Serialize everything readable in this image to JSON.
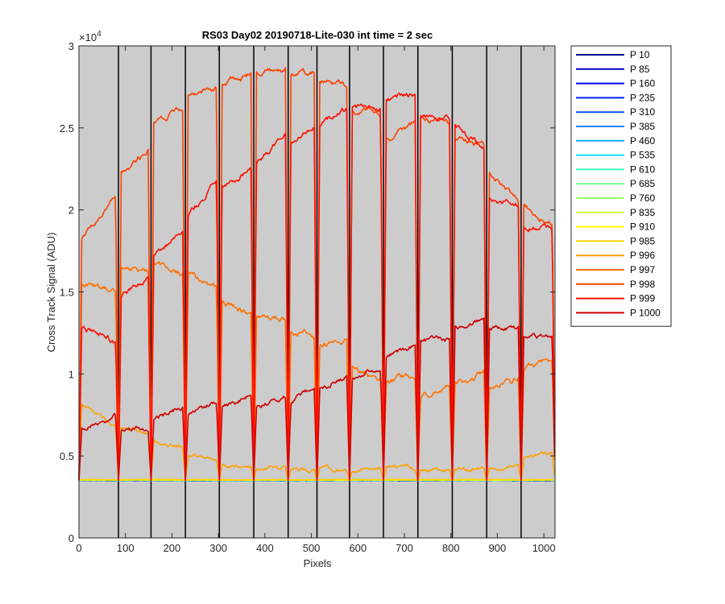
{
  "chart_data": {
    "type": "line",
    "title": "RS03 Day02 20190718-Lite-030 int time = 2 sec",
    "xlabel": "Pixels",
    "ylabel": "Cross Track Signal (ADU)",
    "y_exponent_label": "×10",
    "y_exponent_power": "4",
    "xlim": [
      0,
      1024
    ],
    "ylim": [
      0,
      30000
    ],
    "xticks": [
      0,
      100,
      200,
      300,
      400,
      500,
      600,
      700,
      800,
      900,
      1000
    ],
    "xtick_labels": [
      "0",
      "100",
      "200",
      "300",
      "400",
      "500",
      "600",
      "700",
      "800",
      "900",
      "1000"
    ],
    "yticks": [
      0,
      5000,
      10000,
      15000,
      20000,
      25000,
      30000
    ],
    "ytick_labels": [
      "0",
      "0.5",
      "1",
      "1.5",
      "2",
      "2.5",
      "3"
    ],
    "background_color": "#cccccc",
    "grid": false,
    "legend_position": "outside-right",
    "divider_lines_x": [
      85,
      155,
      229,
      302,
      376,
      450,
      512,
      582,
      655,
      729,
      803,
      877,
      951
    ],
    "block_starts": [
      0,
      85,
      155,
      229,
      302,
      376,
      450,
      512,
      582,
      655,
      729,
      803,
      877,
      951
    ],
    "block_ends": [
      85,
      155,
      229,
      302,
      376,
      450,
      512,
      582,
      655,
      729,
      803,
      877,
      951,
      1024
    ],
    "baseline": 3520,
    "series": [
      {
        "name": "P 10",
        "color": "#00008f",
        "levels": [
          3500,
          3500,
          3500,
          3500,
          3500,
          3500,
          3500,
          3500,
          3500,
          3500,
          3500,
          3500,
          3500,
          3500
        ],
        "drift": [
          0,
          0,
          0,
          0,
          0,
          0,
          0,
          0,
          0,
          0,
          0,
          0,
          0,
          0
        ],
        "noise": 10
      },
      {
        "name": "P 85",
        "color": "#0000bf",
        "levels": [
          3505,
          3505,
          3505,
          3505,
          3505,
          3505,
          3505,
          3505,
          3505,
          3505,
          3505,
          3505,
          3505,
          3505
        ],
        "drift": [
          0,
          0,
          0,
          0,
          0,
          0,
          0,
          0,
          0,
          0,
          0,
          0,
          0,
          0
        ],
        "noise": 10
      },
      {
        "name": "P 160",
        "color": "#0000ef",
        "levels": [
          3510,
          3510,
          3510,
          3510,
          3510,
          3510,
          3510,
          3510,
          3510,
          3510,
          3510,
          3510,
          3510,
          3510
        ],
        "drift": [
          0,
          0,
          0,
          0,
          0,
          0,
          0,
          0,
          0,
          0,
          0,
          0,
          0,
          0
        ],
        "noise": 10
      },
      {
        "name": "P 235",
        "color": "#0020ff",
        "levels": [
          3512,
          3512,
          3512,
          3512,
          3512,
          3512,
          3512,
          3512,
          3512,
          3512,
          3512,
          3512,
          3512,
          3512
        ],
        "drift": [
          0,
          0,
          0,
          0,
          0,
          0,
          0,
          0,
          0,
          0,
          0,
          0,
          0,
          0
        ],
        "noise": 10
      },
      {
        "name": "P 310",
        "color": "#0050ff",
        "levels": [
          3515,
          3515,
          3515,
          3515,
          3515,
          3515,
          3515,
          3515,
          3515,
          3515,
          3515,
          3515,
          3515,
          3515
        ],
        "drift": [
          0,
          0,
          0,
          0,
          0,
          0,
          0,
          0,
          0,
          0,
          0,
          0,
          0,
          0
        ],
        "noise": 10
      },
      {
        "name": "P 385",
        "color": "#0080ff",
        "levels": [
          3518,
          3518,
          3518,
          3518,
          3518,
          3518,
          3518,
          3518,
          3518,
          3518,
          3518,
          3518,
          3518,
          3518
        ],
        "drift": [
          0,
          0,
          0,
          0,
          0,
          0,
          0,
          0,
          0,
          0,
          0,
          0,
          0,
          0
        ],
        "noise": 10
      },
      {
        "name": "P 460",
        "color": "#00b0ff",
        "levels": [
          3520,
          3520,
          3520,
          3520,
          3520,
          3520,
          3520,
          3520,
          3520,
          3520,
          3520,
          3520,
          3520,
          3520
        ],
        "drift": [
          0,
          0,
          0,
          0,
          0,
          0,
          0,
          0,
          0,
          0,
          0,
          0,
          0,
          0
        ],
        "noise": 10
      },
      {
        "name": "P 535",
        "color": "#10e0ef",
        "levels": [
          3522,
          3522,
          3522,
          3522,
          3522,
          3522,
          3522,
          3522,
          3522,
          3522,
          3522,
          3522,
          3522,
          3522
        ],
        "drift": [
          0,
          0,
          0,
          0,
          0,
          0,
          0,
          0,
          0,
          0,
          0,
          0,
          0,
          0
        ],
        "noise": 10
      },
      {
        "name": "P 610",
        "color": "#40ffbf",
        "levels": [
          3525,
          3525,
          3525,
          3525,
          3525,
          3525,
          3525,
          3525,
          3525,
          3525,
          3525,
          3525,
          3525,
          3525
        ],
        "drift": [
          0,
          0,
          0,
          0,
          0,
          0,
          0,
          0,
          0,
          0,
          0,
          0,
          0,
          0
        ],
        "noise": 10
      },
      {
        "name": "P 685",
        "color": "#70ff8f",
        "levels": [
          3527,
          3527,
          3527,
          3527,
          3527,
          3527,
          3527,
          3527,
          3527,
          3527,
          3527,
          3527,
          3527,
          3527
        ],
        "drift": [
          0,
          0,
          0,
          0,
          0,
          0,
          0,
          0,
          0,
          0,
          0,
          0,
          0,
          0
        ],
        "noise": 10
      },
      {
        "name": "P 760",
        "color": "#a0ff60",
        "levels": [
          3530,
          3530,
          3530,
          3530,
          3530,
          3530,
          3530,
          3530,
          3530,
          3530,
          3530,
          3530,
          3530,
          3530
        ],
        "drift": [
          0,
          0,
          0,
          0,
          0,
          0,
          0,
          0,
          0,
          0,
          0,
          0,
          0,
          0
        ],
        "noise": 10
      },
      {
        "name": "P 835",
        "color": "#d0ff30",
        "levels": [
          3532,
          3532,
          3532,
          3532,
          3532,
          3532,
          3532,
          3532,
          3532,
          3532,
          3532,
          3532,
          3532,
          3532
        ],
        "drift": [
          0,
          0,
          0,
          0,
          0,
          0,
          0,
          0,
          0,
          0,
          0,
          0,
          0,
          0
        ],
        "noise": 10
      },
      {
        "name": "P 910",
        "color": "#ffff00",
        "levels": [
          3540,
          3540,
          3540,
          3540,
          3540,
          3540,
          3540,
          3540,
          3540,
          3540,
          3540,
          3540,
          3540,
          3540
        ],
        "drift": [
          0,
          0,
          0,
          0,
          0,
          0,
          0,
          0,
          0,
          0,
          0,
          0,
          0,
          0
        ],
        "noise": 12
      },
      {
        "name": "P 985",
        "color": "#ffd000",
        "levels": [
          3560,
          3560,
          3560,
          3560,
          3560,
          3560,
          3560,
          3560,
          3560,
          3560,
          3560,
          3560,
          3560,
          3560
        ],
        "drift": [
          0,
          0,
          0,
          0,
          0,
          0,
          0,
          0,
          0,
          0,
          0,
          0,
          0,
          0
        ],
        "noise": 12
      },
      {
        "name": "P 996",
        "color": "#ffa000",
        "levels": [
          8300,
          6800,
          5900,
          5000,
          4500,
          4300,
          4200,
          4200,
          4200,
          4250,
          4200,
          4200,
          4300,
          4700
        ],
        "drift": [
          -1600,
          -600,
          -300,
          -200,
          -100,
          0,
          0,
          0,
          0,
          0,
          0,
          0,
          0,
          500
        ],
        "noise": 120
      },
      {
        "name": "P 997",
        "color": "#ff7000",
        "levels": [
          15500,
          16500,
          16800,
          16200,
          14400,
          13500,
          12800,
          11800,
          10200,
          9400,
          8600,
          9400,
          9000,
          10200
        ],
        "drift": [
          -400,
          -300,
          -800,
          -1100,
          -900,
          -200,
          -600,
          0,
          -400,
          600,
          600,
          800,
          900,
          600
        ],
        "noise": 180
      },
      {
        "name": "P 998",
        "color": "#ff4000",
        "levels": [
          18000,
          22200,
          25000,
          27200,
          27700,
          28200,
          28300,
          27900,
          26200,
          24300,
          25600,
          24200,
          22600,
          20300
        ],
        "drift": [
          3000,
          1500,
          1500,
          300,
          600,
          500,
          0,
          -300,
          -400,
          1000,
          -500,
          -200,
          -2500,
          -1300
        ],
        "noise": 180
      },
      {
        "name": "P 999",
        "color": "#ff1000",
        "levels": [
          12800,
          14400,
          16800,
          19500,
          21500,
          22500,
          24000,
          25200,
          26300,
          26600,
          25600,
          25300,
          20800,
          19200
        ],
        "drift": [
          -1000,
          1500,
          2300,
          2500,
          1000,
          2200,
          1200,
          1000,
          -200,
          500,
          -200,
          -1600,
          -500,
          -600
        ],
        "noise": 180
      },
      {
        "name": "P 1000",
        "color": "#cf0000",
        "levels": [
          6600,
          6600,
          7100,
          7400,
          7900,
          8000,
          8300,
          9000,
          9700,
          11000,
          12000,
          12800,
          12800,
          12300
        ],
        "drift": [
          1000,
          0,
          1000,
          1000,
          1000,
          800,
          800,
          1000,
          700,
          800,
          0,
          600,
          0,
          0
        ],
        "noise": 150
      }
    ]
  }
}
